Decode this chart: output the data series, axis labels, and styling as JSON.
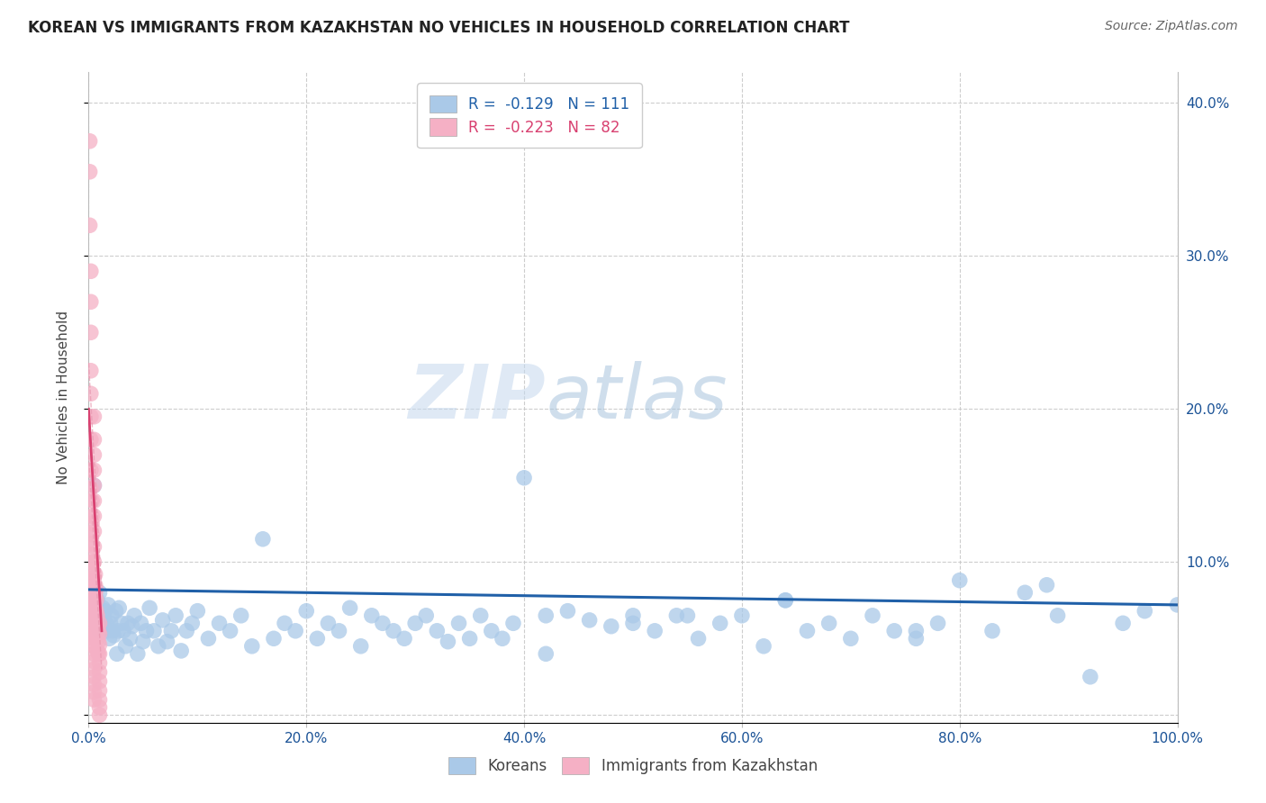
{
  "title": "KOREAN VS IMMIGRANTS FROM KAZAKHSTAN NO VEHICLES IN HOUSEHOLD CORRELATION CHART",
  "source": "Source: ZipAtlas.com",
  "ylabel": "No Vehicles in Household",
  "xlim": [
    0,
    1.0
  ],
  "ylim": [
    -0.005,
    0.42
  ],
  "xtick_vals": [
    0.0,
    0.2,
    0.4,
    0.6,
    0.8,
    1.0
  ],
  "ytick_vals": [
    0.0,
    0.1,
    0.2,
    0.3,
    0.4
  ],
  "legend_korean": "Koreans",
  "legend_kazakh": "Immigrants from Kazakhstan",
  "korean_R": "-0.129",
  "korean_N": "111",
  "kazakh_R": "-0.223",
  "kazakh_N": "82",
  "korean_color": "#aac9e8",
  "kazakh_color": "#f5b0c5",
  "korean_line_color": "#2060a8",
  "kazakh_line_color": "#d84070",
  "kazakh_line_dashed_color": "#e898b0",
  "watermark_zip": "ZIP",
  "watermark_atlas": "atlas",
  "background_color": "#ffffff",
  "grid_color": "#c8c8c8",
  "korean_points_x": [
    0.003,
    0.004,
    0.005,
    0.005,
    0.006,
    0.007,
    0.008,
    0.009,
    0.01,
    0.01,
    0.012,
    0.013,
    0.014,
    0.015,
    0.016,
    0.017,
    0.018,
    0.019,
    0.02,
    0.021,
    0.022,
    0.023,
    0.025,
    0.026,
    0.027,
    0.028,
    0.03,
    0.032,
    0.034,
    0.036,
    0.038,
    0.04,
    0.042,
    0.045,
    0.048,
    0.05,
    0.053,
    0.056,
    0.06,
    0.064,
    0.068,
    0.072,
    0.076,
    0.08,
    0.085,
    0.09,
    0.095,
    0.1,
    0.11,
    0.12,
    0.13,
    0.14,
    0.15,
    0.16,
    0.17,
    0.18,
    0.19,
    0.2,
    0.21,
    0.22,
    0.23,
    0.24,
    0.25,
    0.26,
    0.27,
    0.28,
    0.29,
    0.3,
    0.31,
    0.32,
    0.33,
    0.34,
    0.35,
    0.36,
    0.37,
    0.38,
    0.39,
    0.4,
    0.42,
    0.44,
    0.46,
    0.48,
    0.5,
    0.52,
    0.54,
    0.56,
    0.58,
    0.6,
    0.62,
    0.64,
    0.66,
    0.68,
    0.7,
    0.72,
    0.74,
    0.76,
    0.78,
    0.8,
    0.83,
    0.86,
    0.89,
    0.92,
    0.95,
    0.97,
    1.0,
    0.88,
    0.5,
    0.55,
    0.64,
    0.42,
    0.76
  ],
  "korean_points_y": [
    0.073,
    0.068,
    0.065,
    0.15,
    0.06,
    0.07,
    0.075,
    0.058,
    0.08,
    0.055,
    0.06,
    0.07,
    0.063,
    0.068,
    0.06,
    0.055,
    0.072,
    0.05,
    0.06,
    0.065,
    0.055,
    0.052,
    0.068,
    0.04,
    0.055,
    0.07,
    0.06,
    0.055,
    0.045,
    0.06,
    0.05,
    0.058,
    0.065,
    0.04,
    0.06,
    0.048,
    0.055,
    0.07,
    0.055,
    0.045,
    0.062,
    0.048,
    0.055,
    0.065,
    0.042,
    0.055,
    0.06,
    0.068,
    0.05,
    0.06,
    0.055,
    0.065,
    0.045,
    0.115,
    0.05,
    0.06,
    0.055,
    0.068,
    0.05,
    0.06,
    0.055,
    0.07,
    0.045,
    0.065,
    0.06,
    0.055,
    0.05,
    0.06,
    0.065,
    0.055,
    0.048,
    0.06,
    0.05,
    0.065,
    0.055,
    0.05,
    0.06,
    0.155,
    0.065,
    0.068,
    0.062,
    0.058,
    0.06,
    0.055,
    0.065,
    0.05,
    0.06,
    0.065,
    0.045,
    0.075,
    0.055,
    0.06,
    0.05,
    0.065,
    0.055,
    0.05,
    0.06,
    0.088,
    0.055,
    0.08,
    0.065,
    0.025,
    0.06,
    0.068,
    0.072,
    0.085,
    0.065,
    0.065,
    0.075,
    0.04,
    0.055
  ],
  "kazakh_points_x": [
    0.001,
    0.001,
    0.001,
    0.002,
    0.002,
    0.002,
    0.002,
    0.002,
    0.002,
    0.002,
    0.002,
    0.002,
    0.003,
    0.003,
    0.003,
    0.003,
    0.003,
    0.003,
    0.003,
    0.003,
    0.003,
    0.004,
    0.004,
    0.004,
    0.004,
    0.004,
    0.004,
    0.004,
    0.004,
    0.005,
    0.005,
    0.005,
    0.005,
    0.005,
    0.005,
    0.005,
    0.005,
    0.005,
    0.005,
    0.005,
    0.005,
    0.005,
    0.005,
    0.005,
    0.005,
    0.005,
    0.005,
    0.005,
    0.005,
    0.005,
    0.005,
    0.005,
    0.005,
    0.005,
    0.006,
    0.006,
    0.006,
    0.006,
    0.006,
    0.007,
    0.007,
    0.007,
    0.007,
    0.007,
    0.008,
    0.008,
    0.008,
    0.008,
    0.009,
    0.009,
    0.009,
    0.01,
    0.01,
    0.01,
    0.01,
    0.01,
    0.01,
    0.01,
    0.01,
    0.01,
    0.01,
    0.01
  ],
  "kazakh_points_y": [
    0.375,
    0.355,
    0.32,
    0.29,
    0.27,
    0.25,
    0.225,
    0.21,
    0.195,
    0.18,
    0.16,
    0.148,
    0.14,
    0.13,
    0.125,
    0.118,
    0.112,
    0.105,
    0.1,
    0.095,
    0.088,
    0.082,
    0.078,
    0.072,
    0.068,
    0.063,
    0.058,
    0.053,
    0.048,
    0.195,
    0.18,
    0.17,
    0.16,
    0.15,
    0.14,
    0.13,
    0.12,
    0.11,
    0.1,
    0.09,
    0.082,
    0.075,
    0.068,
    0.062,
    0.056,
    0.05,
    0.045,
    0.04,
    0.035,
    0.03,
    0.025,
    0.02,
    0.015,
    0.01,
    0.092,
    0.085,
    0.078,
    0.07,
    0.062,
    0.082,
    0.075,
    0.068,
    0.06,
    0.052,
    0.065,
    0.058,
    0.05,
    0.042,
    0.055,
    0.048,
    0.04,
    0.06,
    0.053,
    0.046,
    0.04,
    0.034,
    0.028,
    0.022,
    0.016,
    0.01,
    0.005,
    0.0
  ]
}
